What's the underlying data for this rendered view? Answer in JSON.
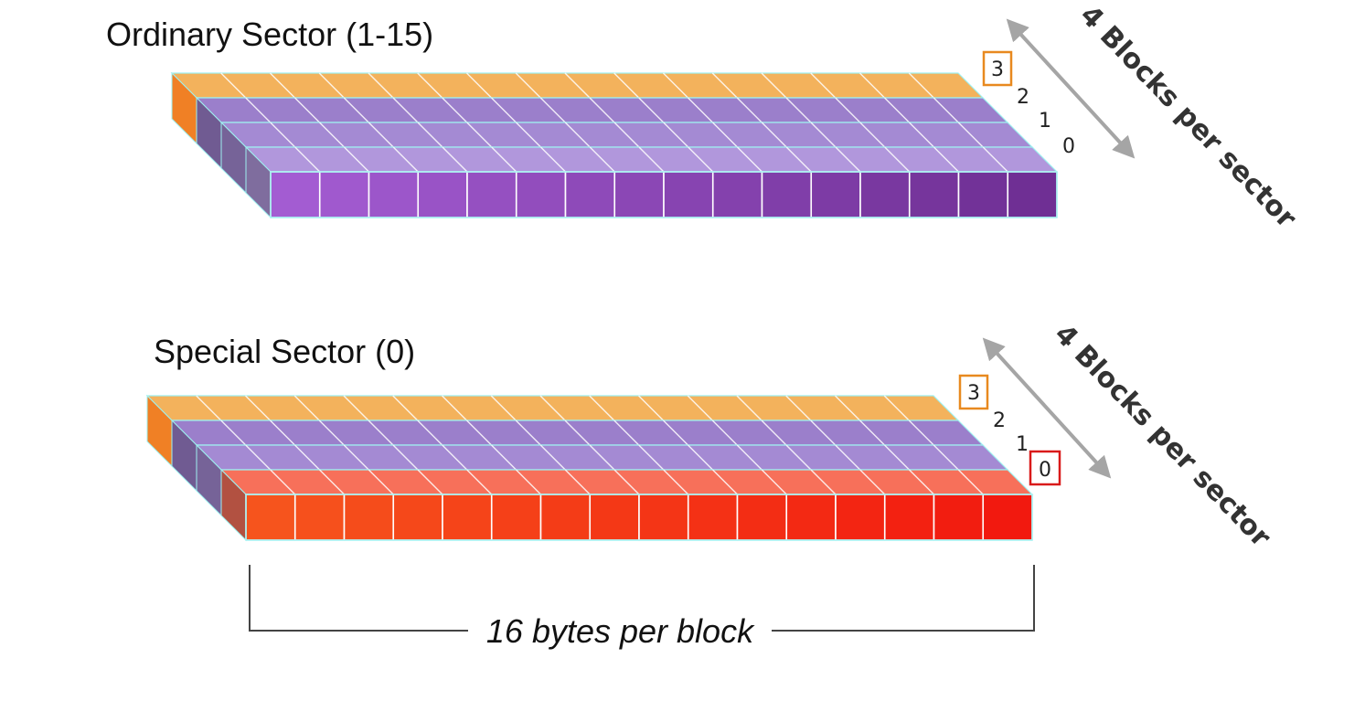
{
  "sectors": [
    {
      "title": "Ordinary Sector (1-15)",
      "block_numbers": [
        "3",
        "2",
        "1",
        "0"
      ],
      "highlight": {
        "block": "3",
        "color": "#e8891f"
      },
      "layer_colors": [
        "#f3b25c",
        "#9b7fcb",
        "#a48ad3",
        "#b197dc"
      ],
      "front_colors": [
        "#a35cd2",
        "#6f2f94"
      ],
      "axis_label": "4 Blocks  per sector"
    },
    {
      "title": "Special Sector (0)",
      "block_numbers": [
        "3",
        "2",
        "1",
        "0"
      ],
      "highlight": {
        "block": "3",
        "color": "#e8891f"
      },
      "highlight2": {
        "block": "0",
        "color": "#d91a1a"
      },
      "layer_colors": [
        "#f3b25c",
        "#9b7fcb",
        "#a48ad3",
        "#f7705a"
      ],
      "front_colors": [
        "#f6541d",
        "#f2190f"
      ],
      "axis_label": "4 Blocks  per sector"
    }
  ],
  "bytes_per_block": 16,
  "caption": "16 bytes per block"
}
